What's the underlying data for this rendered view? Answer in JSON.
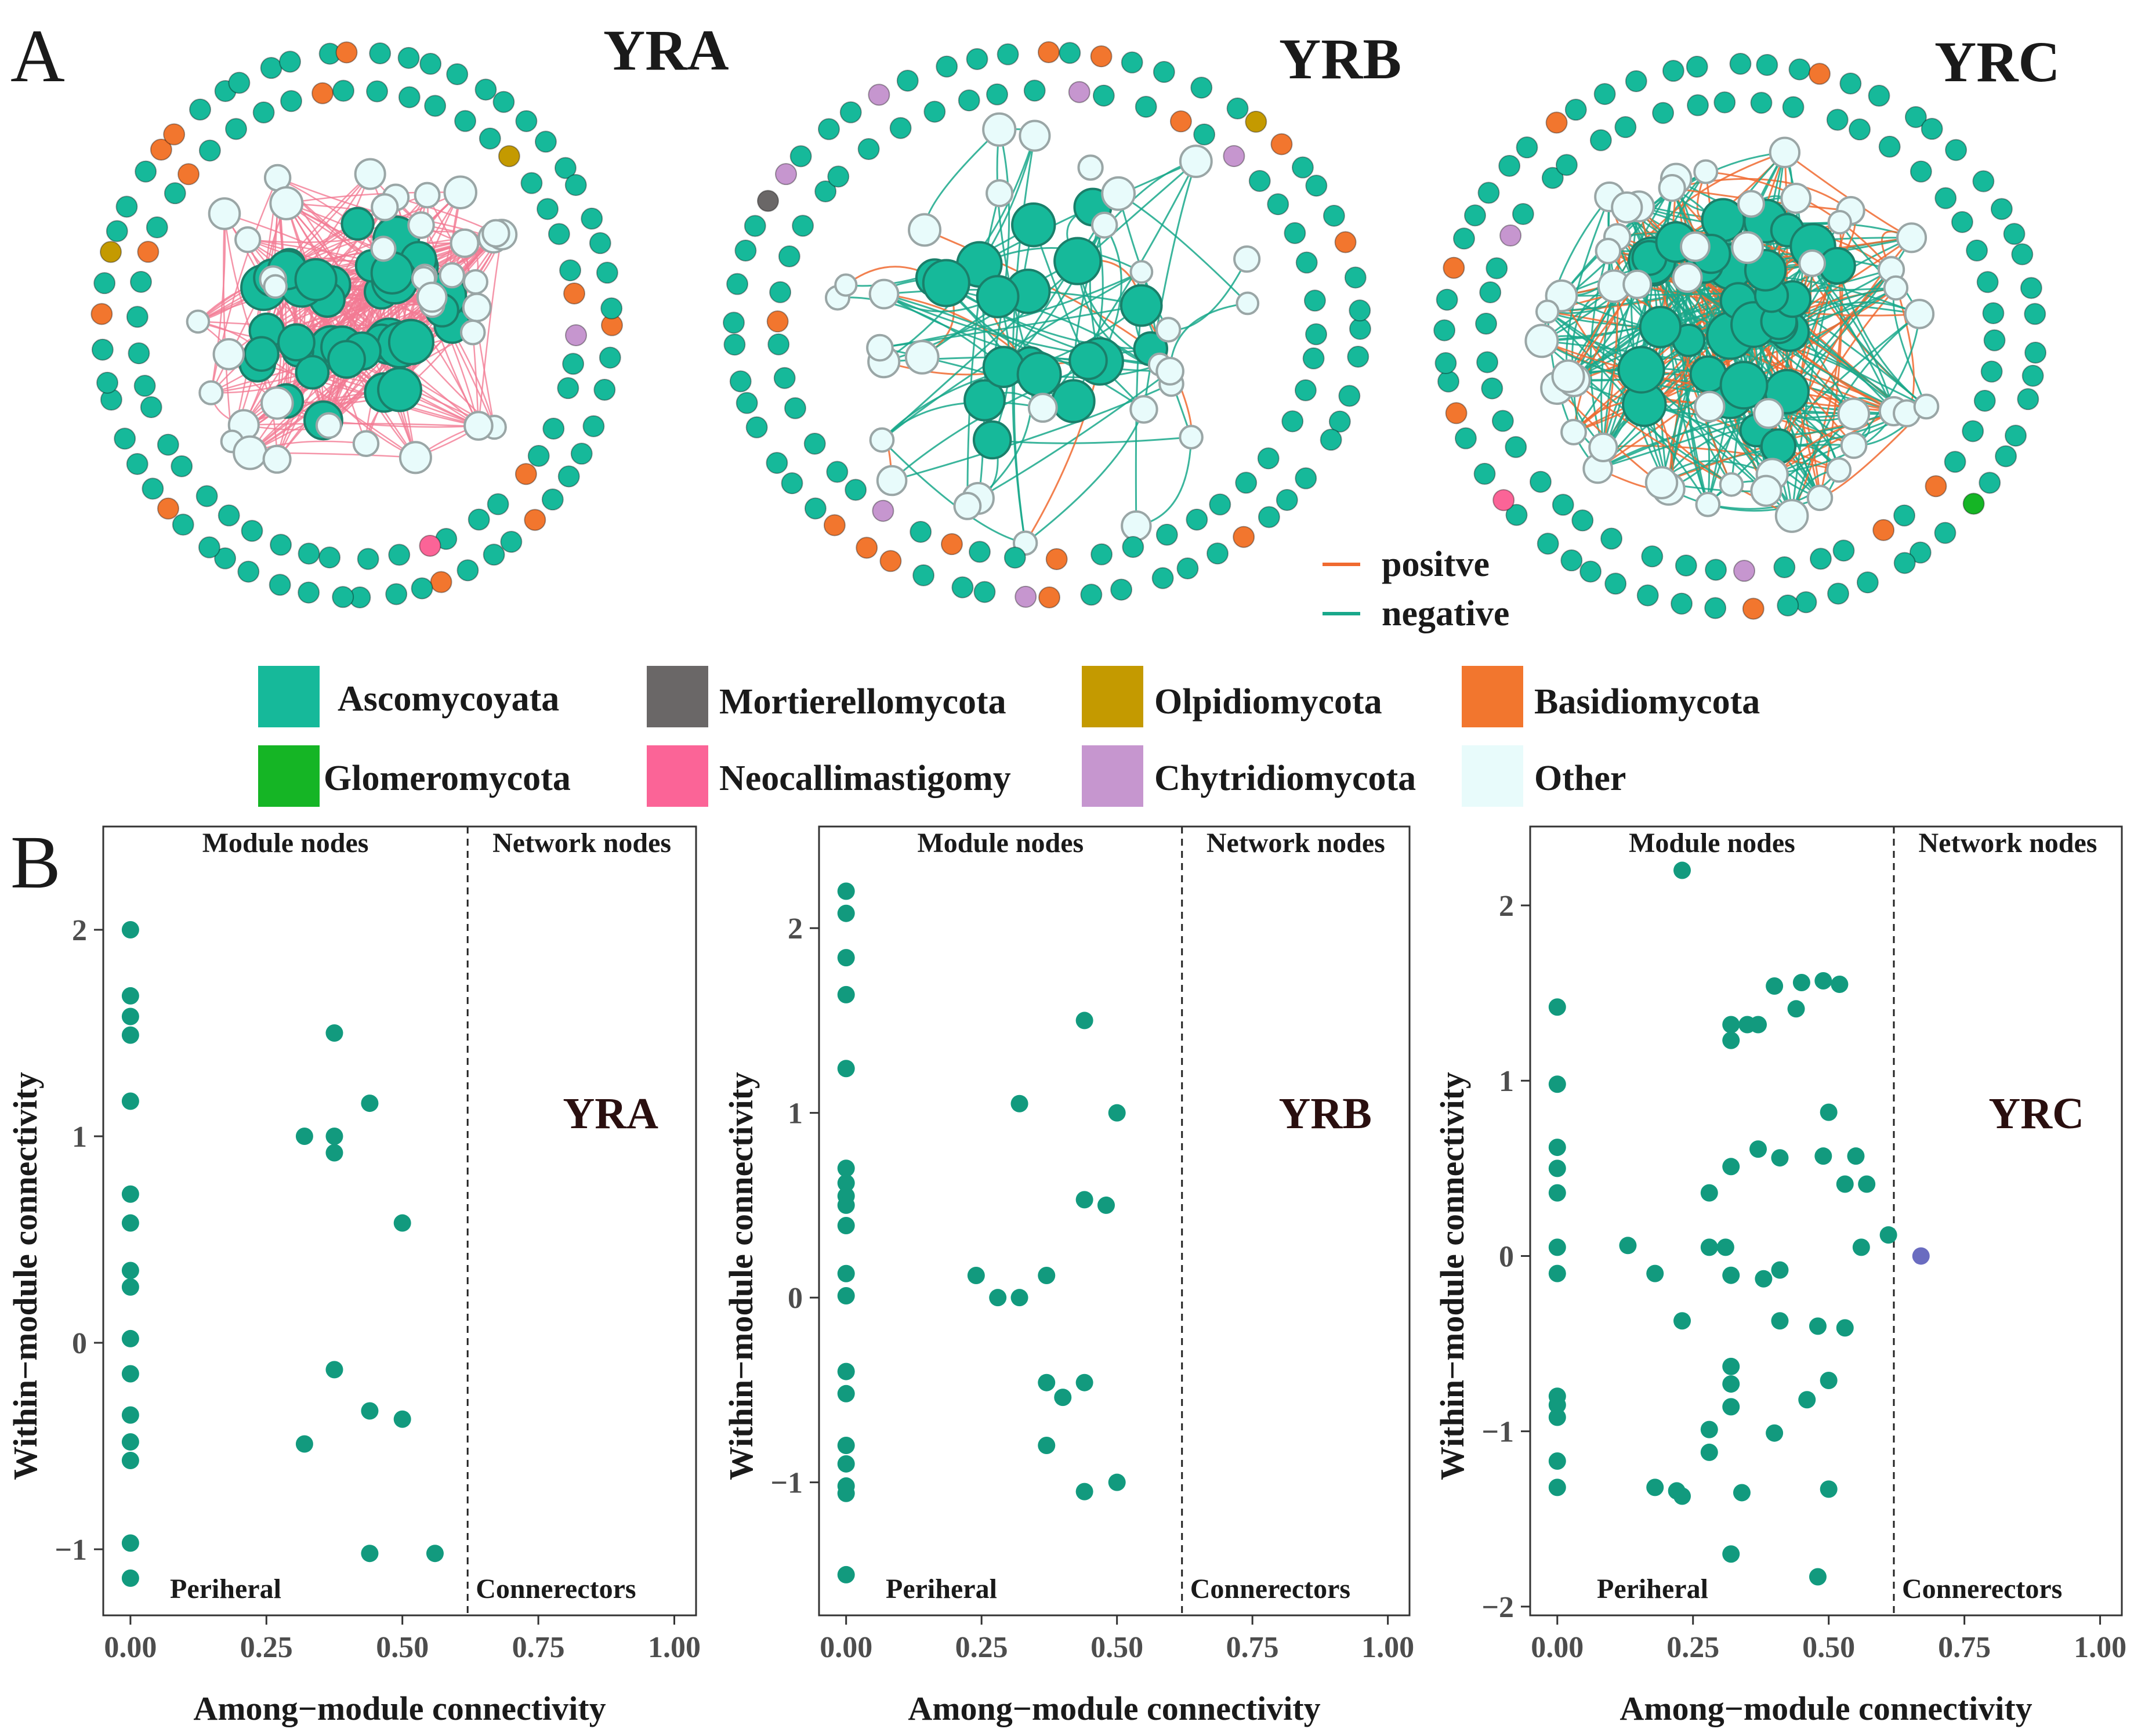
{
  "panel_labels": {
    "a": "A",
    "b": "B"
  },
  "network": {
    "titles": [
      "YRA",
      "YRB",
      "YRC"
    ],
    "edge_legend": {
      "positive": "positve",
      "negative": "negative"
    },
    "colors": {
      "positive_edge": "#f06a30",
      "negative_edge": "#19a88b",
      "ypa_edge": "#f27a93",
      "node_stroke_green": "#1a7f6a",
      "node_stroke_other": "#9aa6a6"
    },
    "phyla": [
      {
        "name": "Ascomycoyata",
        "color": "#16b99a"
      },
      {
        "name": "Mortierellomycota",
        "color": "#6a6767"
      },
      {
        "name": "Olpidiomycota",
        "color": "#c49a00"
      },
      {
        "name": "Basidiomycota",
        "color": "#f2762e"
      },
      {
        "name": "Glomeromycota",
        "color": "#15b525"
      },
      {
        "name": "Neocallimastigomy",
        "color": "#fb6497"
      },
      {
        "name": "Chytridiomycota",
        "color": "#c696cf"
      },
      {
        "name": "Other",
        "color": "#e8fbfb"
      }
    ]
  },
  "chart_data": [
    {
      "type": "scatter",
      "title": "YRA",
      "xlabel": "Among−module connectivity",
      "ylabel": "Within−module connectivity",
      "xlim": [
        -0.05,
        1.04
      ],
      "ylim": [
        -1.32,
        2.5
      ],
      "xticks": [
        0.0,
        0.25,
        0.5,
        0.75,
        1.0
      ],
      "xtick_labels": [
        "0.00",
        "0.25",
        "0.50",
        "0.75",
        "1.00"
      ],
      "yticks": [
        -1,
        0,
        1,
        2
      ],
      "ytick_labels": [
        "−1",
        "0",
        "1",
        "2"
      ],
      "threshold_x": 0.62,
      "threshold_y": 2.5,
      "region_labels": {
        "module": "Module nodes",
        "network": "Network nodes",
        "peripheral": "Periheral",
        "connectors": "Connerectors"
      },
      "point_color": "#129a7e",
      "highlight_color": "#6a6cc0",
      "points": [
        {
          "x": 0,
          "y": 2.0
        },
        {
          "x": 0,
          "y": 1.68
        },
        {
          "x": 0,
          "y": 1.58
        },
        {
          "x": 0,
          "y": 1.49
        },
        {
          "x": 0,
          "y": 1.17
        },
        {
          "x": 0,
          "y": 0.72
        },
        {
          "x": 0,
          "y": 0.58
        },
        {
          "x": 0,
          "y": 0.35
        },
        {
          "x": 0,
          "y": 0.27
        },
        {
          "x": 0,
          "y": 0.02
        },
        {
          "x": 0,
          "y": -0.15
        },
        {
          "x": 0,
          "y": -0.35
        },
        {
          "x": 0,
          "y": -0.48
        },
        {
          "x": 0,
          "y": -0.57
        },
        {
          "x": 0,
          "y": -0.97
        },
        {
          "x": 0,
          "y": -1.14
        },
        {
          "x": 0.375,
          "y": 1.5
        },
        {
          "x": 0.32,
          "y": 1.0
        },
        {
          "x": 0.375,
          "y": 1.0
        },
        {
          "x": 0.375,
          "y": 0.92
        },
        {
          "x": 0.44,
          "y": 1.16
        },
        {
          "x": 0.5,
          "y": 0.58
        },
        {
          "x": 0.375,
          "y": -0.13
        },
        {
          "x": 0.32,
          "y": -0.49
        },
        {
          "x": 0.44,
          "y": -0.33
        },
        {
          "x": 0.5,
          "y": -0.37
        },
        {
          "x": 0.44,
          "y": -1.02
        },
        {
          "x": 0.56,
          "y": -1.02
        }
      ]
    },
    {
      "type": "scatter",
      "title": "YRB",
      "xlabel": "Among−module connectivity",
      "ylabel": "Within−module connectivity",
      "xlim": [
        -0.05,
        1.04
      ],
      "ylim": [
        -1.72,
        2.55
      ],
      "xticks": [
        0.0,
        0.25,
        0.5,
        0.75,
        1.0
      ],
      "xtick_labels": [
        "0.00",
        "0.25",
        "0.50",
        "0.75",
        "1.00"
      ],
      "yticks": [
        -1,
        0,
        1,
        2
      ],
      "ytick_labels": [
        "−1",
        "0",
        "1",
        "2"
      ],
      "threshold_x": 0.62,
      "threshold_y": 2.55,
      "region_labels": {
        "module": "Module nodes",
        "network": "Network nodes",
        "peripheral": "Periheral",
        "connectors": "Connerectors"
      },
      "point_color": "#129a7e",
      "highlight_color": "#6a6cc0",
      "points": [
        {
          "x": 0,
          "y": 2.2
        },
        {
          "x": 0,
          "y": 2.08
        },
        {
          "x": 0,
          "y": 1.84
        },
        {
          "x": 0,
          "y": 1.64
        },
        {
          "x": 0,
          "y": 1.24
        },
        {
          "x": 0,
          "y": 0.7
        },
        {
          "x": 0,
          "y": 0.62
        },
        {
          "x": 0,
          "y": 0.55
        },
        {
          "x": 0,
          "y": 0.5
        },
        {
          "x": 0,
          "y": 0.39
        },
        {
          "x": 0,
          "y": 0.13
        },
        {
          "x": 0,
          "y": 0.01
        },
        {
          "x": 0,
          "y": -0.4
        },
        {
          "x": 0,
          "y": -0.52
        },
        {
          "x": 0,
          "y": -0.8
        },
        {
          "x": 0,
          "y": -0.9
        },
        {
          "x": 0,
          "y": -1.02
        },
        {
          "x": 0,
          "y": -1.06
        },
        {
          "x": 0,
          "y": -1.5
        },
        {
          "x": 0.44,
          "y": 1.5
        },
        {
          "x": 0.32,
          "y": 1.05
        },
        {
          "x": 0.5,
          "y": 1.0
        },
        {
          "x": 0.44,
          "y": 0.53
        },
        {
          "x": 0.48,
          "y": 0.5
        },
        {
          "x": 0.24,
          "y": 0.12
        },
        {
          "x": 0.28,
          "y": 0.0
        },
        {
          "x": 0.32,
          "y": 0.0
        },
        {
          "x": 0.37,
          "y": 0.12
        },
        {
          "x": 0.37,
          "y": -0.46
        },
        {
          "x": 0.4,
          "y": -0.54
        },
        {
          "x": 0.44,
          "y": -0.46
        },
        {
          "x": 0.37,
          "y": -0.8
        },
        {
          "x": 0.44,
          "y": -1.05
        },
        {
          "x": 0.5,
          "y": -1.0
        }
      ]
    },
    {
      "type": "scatter",
      "title": "YRC",
      "xlabel": "Among−module connectivity",
      "ylabel": "Within−module connectivity",
      "xlim": [
        -0.05,
        1.04
      ],
      "ylim": [
        -2.05,
        2.45
      ],
      "xticks": [
        0.0,
        0.25,
        0.5,
        0.75,
        1.0
      ],
      "xtick_labels": [
        "0.00",
        "0.25",
        "0.50",
        "0.75",
        "1.00"
      ],
      "yticks": [
        -2,
        -1,
        0,
        1,
        2
      ],
      "ytick_labels": [
        "−2",
        "−1",
        "0",
        "1",
        "2"
      ],
      "threshold_x": 0.62,
      "threshold_y": 2.45,
      "region_labels": {
        "module": "Module nodes",
        "network": "Network nodes",
        "peripheral": "Periheral",
        "connectors": "Connerectors"
      },
      "point_color": "#129a7e",
      "highlight_color": "#6a6cc0",
      "highlight_points": [
        {
          "x": 0.67,
          "y": 0.0
        }
      ],
      "points": [
        {
          "x": 0,
          "y": 1.42
        },
        {
          "x": 0,
          "y": 0.98
        },
        {
          "x": 0,
          "y": 0.62
        },
        {
          "x": 0,
          "y": 0.5
        },
        {
          "x": 0,
          "y": 0.36
        },
        {
          "x": 0,
          "y": 0.05
        },
        {
          "x": 0,
          "y": -0.1
        },
        {
          "x": 0,
          "y": -0.8
        },
        {
          "x": 0,
          "y": -0.85
        },
        {
          "x": 0,
          "y": -0.92
        },
        {
          "x": 0,
          "y": -1.17
        },
        {
          "x": 0,
          "y": -1.32
        },
        {
          "x": 0.23,
          "y": 2.2
        },
        {
          "x": 0.13,
          "y": 0.06
        },
        {
          "x": 0.18,
          "y": -0.1
        },
        {
          "x": 0.23,
          "y": -0.37
        },
        {
          "x": 0.28,
          "y": 0.36
        },
        {
          "x": 0.28,
          "y": 0.05
        },
        {
          "x": 0.32,
          "y": 1.32
        },
        {
          "x": 0.32,
          "y": 1.23
        },
        {
          "x": 0.35,
          "y": 1.32
        },
        {
          "x": 0.37,
          "y": 1.32
        },
        {
          "x": 0.4,
          "y": 1.54
        },
        {
          "x": 0.44,
          "y": 1.41
        },
        {
          "x": 0.45,
          "y": 1.56
        },
        {
          "x": 0.49,
          "y": 1.57
        },
        {
          "x": 0.52,
          "y": 1.55
        },
        {
          "x": 0.5,
          "y": 0.82
        },
        {
          "x": 0.37,
          "y": 0.61
        },
        {
          "x": 0.41,
          "y": 0.56
        },
        {
          "x": 0.49,
          "y": 0.57
        },
        {
          "x": 0.55,
          "y": 0.57
        },
        {
          "x": 0.32,
          "y": 0.51
        },
        {
          "x": 0.53,
          "y": 0.41
        },
        {
          "x": 0.57,
          "y": 0.41
        },
        {
          "x": 0.56,
          "y": 0.05
        },
        {
          "x": 0.61,
          "y": 0.12
        },
        {
          "x": 0.31,
          "y": 0.05
        },
        {
          "x": 0.32,
          "y": -0.11
        },
        {
          "x": 0.38,
          "y": -0.13
        },
        {
          "x": 0.41,
          "y": -0.08
        },
        {
          "x": 0.41,
          "y": -0.37
        },
        {
          "x": 0.48,
          "y": -0.4
        },
        {
          "x": 0.53,
          "y": -0.41
        },
        {
          "x": 0.32,
          "y": -0.63
        },
        {
          "x": 0.32,
          "y": -0.73
        },
        {
          "x": 0.32,
          "y": -0.86
        },
        {
          "x": 0.46,
          "y": -0.82
        },
        {
          "x": 0.5,
          "y": -0.71
        },
        {
          "x": 0.28,
          "y": -0.99
        },
        {
          "x": 0.28,
          "y": -1.12
        },
        {
          "x": 0.4,
          "y": -1.01
        },
        {
          "x": 0.18,
          "y": -1.32
        },
        {
          "x": 0.22,
          "y": -1.34
        },
        {
          "x": 0.23,
          "y": -1.37
        },
        {
          "x": 0.34,
          "y": -1.35
        },
        {
          "x": 0.5,
          "y": -1.33
        },
        {
          "x": 0.32,
          "y": -1.7
        },
        {
          "x": 0.48,
          "y": -1.83
        }
      ]
    }
  ]
}
